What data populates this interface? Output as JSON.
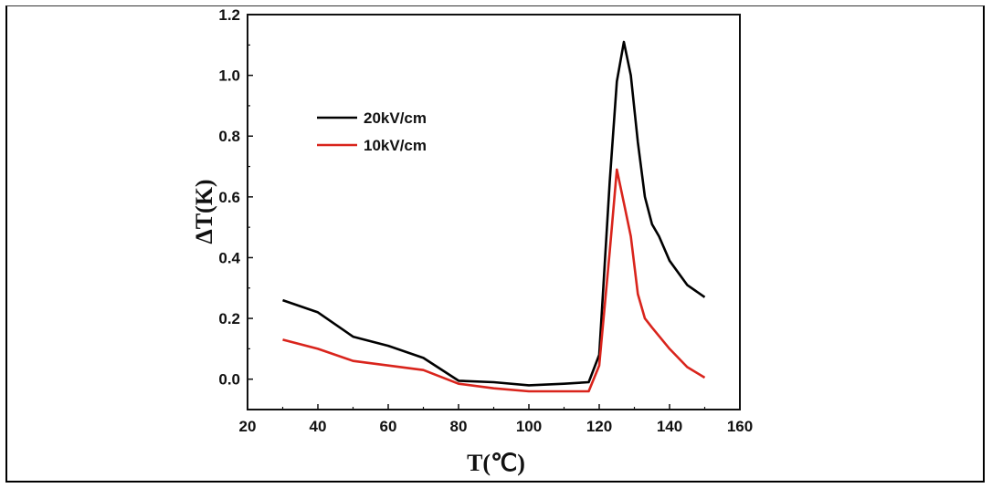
{
  "chart_data": {
    "type": "line",
    "xlabel": "T(℃)",
    "ylabel": "ΔT(K)",
    "xlim": [
      20,
      160
    ],
    "ylim": [
      -0.1,
      1.2
    ],
    "xticks": [
      "20",
      "40",
      "60",
      "80",
      "100",
      "120",
      "140",
      "160"
    ],
    "yticks": [
      "0.0",
      "0.2",
      "0.4",
      "0.6",
      "0.8",
      "1.0",
      "1.2"
    ],
    "legend_position": "upper-left",
    "grid": false,
    "series": [
      {
        "name": "20kV/cm",
        "color": "#000000",
        "x": [
          30,
          40,
          50,
          60,
          70,
          80,
          90,
          100,
          110,
          117,
          120,
          123,
          125,
          127,
          129,
          131,
          133,
          135,
          137,
          140,
          145,
          150
        ],
        "y": [
          0.26,
          0.22,
          0.14,
          0.11,
          0.07,
          -0.005,
          -0.01,
          -0.02,
          -0.015,
          -0.01,
          0.08,
          0.65,
          0.98,
          1.11,
          1.0,
          0.78,
          0.6,
          0.51,
          0.47,
          0.39,
          0.31,
          0.27
        ]
      },
      {
        "name": "10kV/cm",
        "color": "#d9241c",
        "x": [
          30,
          40,
          50,
          60,
          70,
          80,
          90,
          100,
          110,
          117,
          120,
          123,
          125,
          127,
          129,
          131,
          133,
          135,
          140,
          145,
          150
        ],
        "y": [
          0.13,
          0.1,
          0.06,
          0.045,
          0.03,
          -0.015,
          -0.03,
          -0.04,
          -0.04,
          -0.04,
          0.045,
          0.42,
          0.69,
          0.58,
          0.47,
          0.28,
          0.2,
          0.17,
          0.1,
          0.04,
          0.005
        ]
      }
    ]
  }
}
